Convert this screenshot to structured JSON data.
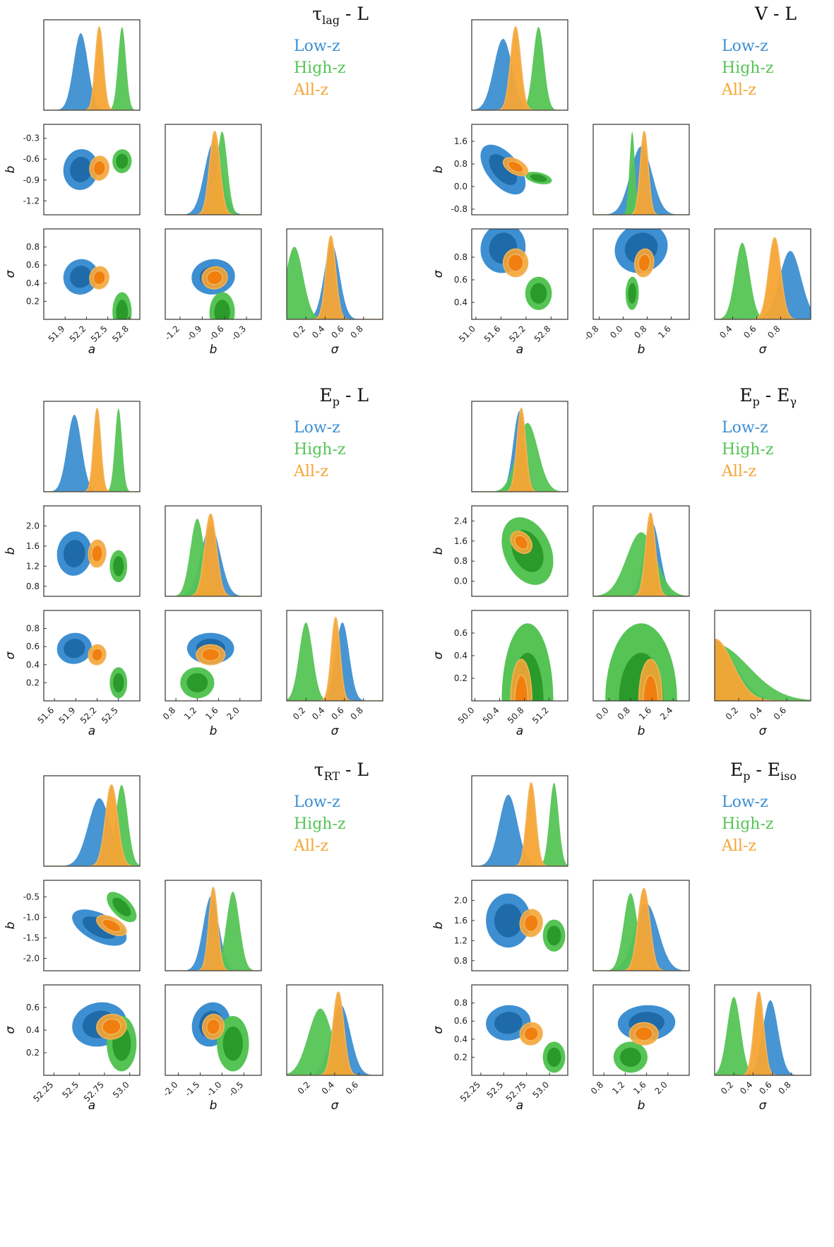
{
  "colors": {
    "low": "#3d8fd1",
    "low_dark": "#1f6aa8",
    "high": "#55c455",
    "high_dark": "#2a9a2a",
    "all": "#f5a534",
    "all_dark": "#f07f10",
    "all_line": "#f2b35a"
  },
  "legend": {
    "low": "Low-z",
    "high": "High-z",
    "all": "All-z"
  },
  "chart_data": [
    {
      "type": "corner",
      "title": "τ",
      "title_sub": "lag",
      "title_rest": " - L",
      "params": [
        {
          "label": "a",
          "ticks": [
            51.9,
            52.2,
            52.5,
            52.8
          ],
          "range": [
            51.6,
            52.95
          ]
        },
        {
          "label": "b",
          "ticks": [
            -1.2,
            -0.9,
            -0.6,
            -0.3
          ],
          "range": [
            -1.4,
            -0.1
          ]
        },
        {
          "label": "σ",
          "ticks": [
            0.2,
            0.4,
            0.6,
            0.8
          ],
          "range": [
            0.0,
            1.0
          ]
        }
      ],
      "series": [
        {
          "name": "Low-z",
          "mean": [
            52.12,
            -0.75,
            0.47
          ],
          "sd": [
            0.1,
            0.12,
            0.08
          ],
          "rho": [
            0.05,
            0.05,
            0.05
          ]
        },
        {
          "name": "High-z",
          "mean": [
            52.7,
            -0.63,
            0.08
          ],
          "sd": [
            0.055,
            0.07,
            0.09
          ],
          "rho": [
            0.02,
            0.0,
            0.02
          ]
        },
        {
          "name": "All-z",
          "mean": [
            52.38,
            -0.73,
            0.46
          ],
          "sd": [
            0.055,
            0.07,
            0.05
          ],
          "rho": [
            0.05,
            0.05,
            0.05
          ]
        }
      ]
    },
    {
      "type": "corner",
      "title": "V - L",
      "title_sub": "",
      "title_rest": "",
      "params": [
        {
          "label": "a",
          "ticks": [
            51.0,
            51.6,
            52.2,
            52.8
          ],
          "range": [
            50.9,
            53.2
          ]
        },
        {
          "label": "b",
          "ticks": [
            -0.8,
            0.0,
            0.8,
            1.6
          ],
          "range": [
            -1.0,
            2.2
          ]
        },
        {
          "label": "σ",
          "ticks": [
            0.4,
            0.6,
            0.8
          ],
          "range": [
            0.25,
            1.05
          ]
        }
      ],
      "series": [
        {
          "name": "Low-z",
          "mean": [
            51.65,
            0.6,
            0.88
          ],
          "sd": [
            0.22,
            0.36,
            0.09
          ],
          "rho": [
            -0.55,
            0.05,
            0.1
          ]
        },
        {
          "name": "High-z",
          "mean": [
            52.5,
            0.3,
            0.48
          ],
          "sd": [
            0.13,
            0.09,
            0.06
          ],
          "rho": [
            -0.4,
            0.0,
            0.05
          ]
        },
        {
          "name": "All-z",
          "mean": [
            51.95,
            0.7,
            0.75
          ],
          "sd": [
            0.12,
            0.13,
            0.05
          ],
          "rho": [
            -0.5,
            0.0,
            0.1
          ]
        }
      ]
    },
    {
      "type": "corner",
      "title": "E",
      "title_sub": "p",
      "title_rest": " - L",
      "params": [
        {
          "label": "a",
          "ticks": [
            51.6,
            51.9,
            52.2,
            52.5
          ],
          "range": [
            51.45,
            52.8
          ]
        },
        {
          "label": "b",
          "ticks": [
            0.8,
            1.2,
            1.6,
            2.0
          ],
          "range": [
            0.6,
            2.4
          ]
        },
        {
          "label": "σ",
          "ticks": [
            0.2,
            0.4,
            0.6,
            0.8
          ],
          "range": [
            0.0,
            1.0
          ]
        }
      ],
      "series": [
        {
          "name": "Low-z",
          "mean": [
            51.88,
            1.45,
            0.58
          ],
          "sd": [
            0.1,
            0.18,
            0.07
          ],
          "rho": [
            0.05,
            0.05,
            0.0
          ]
        },
        {
          "name": "High-z",
          "mean": [
            52.5,
            1.2,
            0.2
          ],
          "sd": [
            0.05,
            0.13,
            0.07
          ],
          "rho": [
            0.0,
            0.0,
            0.0
          ]
        },
        {
          "name": "All-z",
          "mean": [
            52.2,
            1.45,
            0.51
          ],
          "sd": [
            0.05,
            0.11,
            0.045
          ],
          "rho": [
            0.05,
            0.05,
            0.0
          ]
        }
      ]
    },
    {
      "type": "corner",
      "title": "E",
      "title_sub": "p",
      "title_rest": " - E",
      "title_sub2": "γ",
      "params": [
        {
          "label": "a",
          "ticks": [
            50.0,
            50.4,
            50.8,
            51.2
          ],
          "range": [
            49.95,
            51.5
          ]
        },
        {
          "label": "b",
          "ticks": [
            0.0,
            0.8,
            1.6,
            2.4
          ],
          "range": [
            -0.6,
            3.0
          ]
        },
        {
          "label": "σ",
          "ticks": [
            0.2,
            0.4,
            0.6
          ],
          "range": [
            0.0,
            0.8
          ]
        }
      ],
      "series": [
        {
          "name": "Low-z",
          "mean": [
            50.72,
            1.6,
            0.0
          ],
          "sd": [
            0.1,
            0.3,
            0.17
          ],
          "rho": [
            -0.3,
            0.0,
            0.0
          ]
        },
        {
          "name": "High-z",
          "mean": [
            50.85,
            1.2,
            0.0
          ],
          "sd": [
            0.17,
            0.55,
            0.28
          ],
          "rho": [
            -0.3,
            0.0,
            0.0
          ]
        },
        {
          "name": "All-z",
          "mean": [
            50.75,
            1.55,
            0.0
          ],
          "sd": [
            0.07,
            0.18,
            0.15
          ],
          "rho": [
            -0.3,
            0.0,
            0.0
          ]
        }
      ]
    },
    {
      "type": "corner",
      "title": "τ",
      "title_sub": "RT",
      "title_rest": " - L",
      "params": [
        {
          "label": "a",
          "ticks": [
            52.25,
            52.5,
            52.75,
            53.0
          ],
          "range": [
            52.15,
            53.1
          ]
        },
        {
          "label": "b",
          "ticks": [
            -2.0,
            -1.5,
            -1.0,
            -0.5
          ],
          "range": [
            -2.3,
            -0.1
          ]
        },
        {
          "label": "σ",
          "ticks": [
            0.2,
            0.4,
            0.6
          ],
          "range": [
            0.0,
            0.8
          ]
        }
      ],
      "series": [
        {
          "name": "Low-z",
          "mean": [
            52.7,
            -1.25,
            0.45
          ],
          "sd": [
            0.11,
            0.18,
            0.08
          ],
          "rho": [
            -0.55,
            0.1,
            0.1
          ]
        },
        {
          "name": "High-z",
          "mean": [
            52.92,
            -0.75,
            0.28
          ],
          "sd": [
            0.06,
            0.15,
            0.1
          ],
          "rho": [
            -0.6,
            0.0,
            0.0
          ]
        },
        {
          "name": "All-z",
          "mean": [
            52.82,
            -1.2,
            0.43
          ],
          "sd": [
            0.06,
            0.1,
            0.045
          ],
          "rho": [
            -0.55,
            0.05,
            0.05
          ]
        }
      ]
    },
    {
      "type": "corner",
      "title": "E",
      "title_sub": "p",
      "title_rest": " - E",
      "title_sub2": "iso",
      "params": [
        {
          "label": "a",
          "ticks": [
            52.25,
            52.5,
            52.75,
            53.0
          ],
          "range": [
            52.15,
            53.2
          ]
        },
        {
          "label": "b",
          "ticks": [
            0.8,
            1.2,
            1.6,
            2.0
          ],
          "range": [
            0.6,
            2.4
          ]
        },
        {
          "label": "σ",
          "ticks": [
            0.2,
            0.4,
            0.6,
            0.8
          ],
          "range": [
            0.0,
            1.0
          ]
        }
      ],
      "series": [
        {
          "name": "Low-z",
          "mean": [
            52.55,
            1.6,
            0.58
          ],
          "sd": [
            0.1,
            0.22,
            0.08
          ],
          "rho": [
            0.0,
            0.05,
            0.05
          ]
        },
        {
          "name": "High-z",
          "mean": [
            53.05,
            1.3,
            0.2
          ],
          "sd": [
            0.05,
            0.13,
            0.07
          ],
          "rho": [
            0.0,
            0.0,
            0.0
          ]
        },
        {
          "name": "All-z",
          "mean": [
            52.8,
            1.55,
            0.46
          ],
          "sd": [
            0.05,
            0.11,
            0.05
          ],
          "rho": [
            0.05,
            0.05,
            0.0
          ]
        }
      ]
    }
  ]
}
